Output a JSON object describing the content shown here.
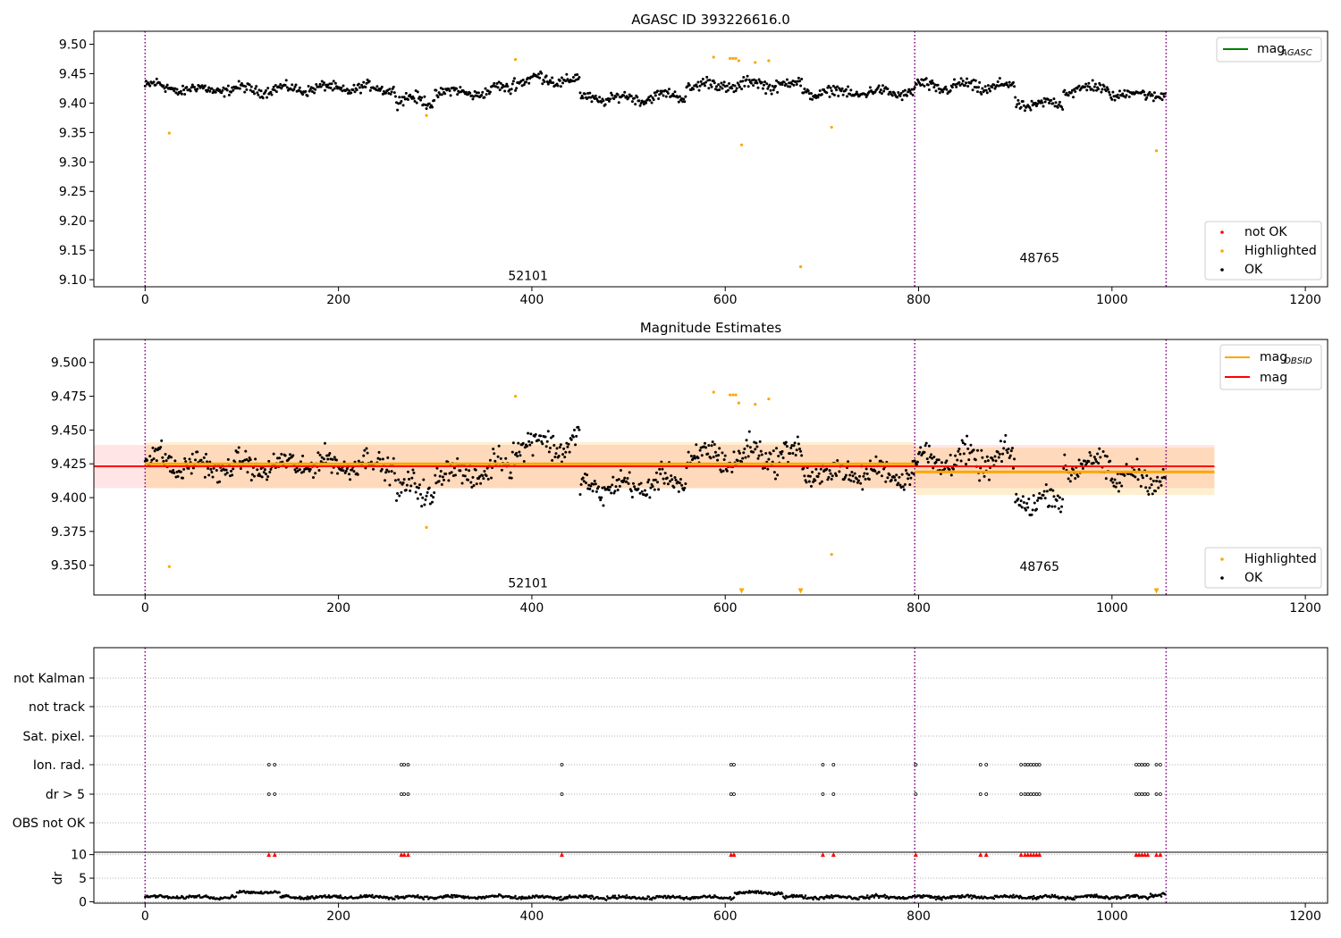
{
  "chart_data": [
    {
      "type": "scatter",
      "title": "AGASC ID 393226616.0",
      "xlabel": "",
      "ylabel": "",
      "xlim": [
        -53,
        1223
      ],
      "ylim": [
        9.088,
        9.522
      ],
      "x_ticks": [
        0,
        200,
        400,
        600,
        800,
        1000,
        1200
      ],
      "y_ticks": [
        9.1,
        9.15,
        9.2,
        9.25,
        9.3,
        9.35,
        9.4,
        9.45,
        9.5
      ],
      "y_tick_labels": [
        "9.10",
        "9.15",
        "9.20",
        "9.25",
        "9.30",
        "9.35",
        "9.40",
        "9.45",
        "9.50"
      ],
      "obsid_boundaries": [
        0,
        796,
        1056
      ],
      "obsid_labels": [
        {
          "x": 396,
          "y": 9.107,
          "text": "52101"
        },
        {
          "x": 925,
          "y": 9.137,
          "text": "48765"
        }
      ],
      "legend_upper": [
        {
          "label": "mag",
          "sub": "AGASC",
          "color": "#008000",
          "kind": "line"
        }
      ],
      "legend_lower": [
        {
          "label": "not OK",
          "color": "#ff0000",
          "kind": "dot"
        },
        {
          "label": "Highlighted",
          "color": "#ffa500",
          "kind": "dot"
        },
        {
          "label": "OK",
          "color": "#000000",
          "kind": "dot"
        }
      ],
      "series": [
        {
          "name": "Highlighted",
          "color": "#ffa500",
          "x": [
            25,
            291,
            383,
            588,
            605,
            608,
            611,
            614,
            617,
            631,
            645,
            678,
            710,
            1046
          ],
          "y": [
            9.349,
            9.379,
            9.474,
            9.478,
            9.476,
            9.476,
            9.476,
            9.472,
            9.329,
            9.469,
            9.472,
            9.122,
            9.359,
            9.319
          ]
        },
        {
          "name": "OK",
          "color": "#000000",
          "generated": true,
          "segments": [
            [
              0,
              30,
              9.428,
              0.012
            ],
            [
              30,
              150,
              9.423,
              0.01
            ],
            [
              150,
              260,
              9.425,
              0.01
            ],
            [
              260,
              300,
              9.405,
              0.012
            ],
            [
              300,
              360,
              9.418,
              0.01
            ],
            [
              360,
              380,
              9.425,
              0.01
            ],
            [
              380,
              450,
              9.44,
              0.012
            ],
            [
              450,
              520,
              9.408,
              0.01
            ],
            [
              520,
              560,
              9.412,
              0.01
            ],
            [
              560,
              620,
              9.43,
              0.012
            ],
            [
              620,
              680,
              9.432,
              0.012
            ],
            [
              680,
              796,
              9.418,
              0.01
            ],
            [
              796,
              900,
              9.428,
              0.012
            ],
            [
              900,
              950,
              9.398,
              0.01
            ],
            [
              950,
              1000,
              9.424,
              0.012
            ],
            [
              1000,
              1056,
              9.415,
              0.01
            ]
          ]
        }
      ]
    },
    {
      "type": "scatter",
      "title": "Magnitude Estimates",
      "xlabel": "",
      "ylabel": "",
      "xlim": [
        -53,
        1223
      ],
      "ylim": [
        9.328,
        9.517
      ],
      "x_ticks": [
        0,
        200,
        400,
        600,
        800,
        1000,
        1200
      ],
      "y_ticks": [
        9.35,
        9.375,
        9.4,
        9.425,
        9.45,
        9.475,
        9.5
      ],
      "y_tick_labels": [
        "9.350",
        "9.375",
        "9.400",
        "9.425",
        "9.450",
        "9.475",
        "9.500"
      ],
      "obsid_boundaries": [
        0,
        796,
        1056
      ],
      "obsid_labels": [
        {
          "x": 396,
          "y": 9.337,
          "text": "52101"
        },
        {
          "x": 925,
          "y": 9.349,
          "text": "48765"
        }
      ],
      "legend_upper": [
        {
          "label": "mag",
          "sub": "OBSID",
          "color": "#ffa500",
          "kind": "line"
        },
        {
          "label": "mag",
          "sub": "",
          "color": "#ff0000",
          "kind": "line"
        }
      ],
      "legend_lower": [
        {
          "label": "Highlighted",
          "color": "#ffa500",
          "kind": "dot"
        },
        {
          "label": "OK",
          "color": "#000000",
          "kind": "dot"
        }
      ],
      "mag": {
        "value": 9.4232,
        "band": [
          9.407,
          9.439
        ],
        "x_range": [
          -53,
          1106
        ],
        "color": "#ff0000"
      },
      "mag_obsid": [
        {
          "x0": 0,
          "x1": 796,
          "value": 9.425,
          "band": [
            9.407,
            9.441
          ]
        },
        {
          "x0": 796,
          "x1": 1106,
          "value": 9.419,
          "band": [
            9.402,
            9.437
          ]
        }
      ],
      "series": [
        {
          "name": "Highlighted",
          "color": "#ffa500",
          "x": [
            25,
            291,
            383,
            588,
            605,
            608,
            611,
            614,
            631,
            645,
            710
          ],
          "y": [
            9.349,
            9.378,
            9.475,
            9.478,
            9.476,
            9.476,
            9.476,
            9.47,
            9.469,
            9.473,
            9.358
          ]
        },
        {
          "name": "Highlighted (off scale)",
          "color": "#ffa500",
          "marker": "triangle-down",
          "x": [
            617,
            678,
            1046
          ],
          "y": [
            9.331,
            9.331,
            9.331
          ]
        },
        {
          "name": "OK",
          "color": "#000000",
          "generated": true,
          "segments": [
            [
              0,
              30,
              9.428,
              0.012
            ],
            [
              30,
              150,
              9.423,
              0.01
            ],
            [
              150,
              260,
              9.425,
              0.01
            ],
            [
              260,
              300,
              9.405,
              0.012
            ],
            [
              300,
              360,
              9.418,
              0.01
            ],
            [
              360,
              380,
              9.425,
              0.01
            ],
            [
              380,
              450,
              9.44,
              0.012
            ],
            [
              450,
              520,
              9.408,
              0.01
            ],
            [
              520,
              560,
              9.412,
              0.01
            ],
            [
              560,
              620,
              9.43,
              0.012
            ],
            [
              620,
              680,
              9.432,
              0.012
            ],
            [
              680,
              796,
              9.418,
              0.01
            ],
            [
              796,
              900,
              9.428,
              0.012
            ],
            [
              900,
              950,
              9.398,
              0.01
            ],
            [
              950,
              1000,
              9.424,
              0.012
            ],
            [
              1000,
              1056,
              9.415,
              0.01
            ]
          ]
        }
      ]
    },
    {
      "type": "scatter",
      "title": "",
      "xlabel": "",
      "xlim": [
        -53,
        1223
      ],
      "x_ticks": [
        0,
        200,
        400,
        600,
        800,
        1000,
        1200
      ],
      "obsid_boundaries": [
        0,
        796,
        1056
      ],
      "categories": [
        "not Kalman",
        "not track",
        "Sat. pixel.",
        "Ion. rad.",
        "dr > 5",
        "OBS not OK"
      ],
      "flags": {
        "Ion. rad.": [
          128,
          134,
          265,
          268,
          272,
          431,
          606,
          609,
          701,
          712,
          797,
          864,
          870,
          906,
          910,
          913,
          916,
          919,
          922,
          925,
          1025,
          1028,
          1031,
          1034,
          1037,
          1046,
          1050
        ],
        "dr > 5": [
          128,
          134,
          265,
          268,
          272,
          431,
          606,
          609,
          701,
          712,
          797,
          864,
          870,
          906,
          910,
          913,
          916,
          919,
          922,
          925,
          1025,
          1028,
          1031,
          1034,
          1037,
          1046,
          1050
        ]
      },
      "dr": {
        "ylabel": "dr",
        "ylim": [
          -0.3,
          10.5
        ],
        "y_ticks": [
          0,
          5,
          10
        ],
        "y_tick_labels": [
          "0",
          "5",
          "10"
        ],
        "clipped_value": 10,
        "clipped_x": [
          128,
          134,
          265,
          268,
          272,
          431,
          606,
          609,
          701,
          712,
          797,
          864,
          870,
          906,
          910,
          913,
          916,
          919,
          922,
          925,
          1025,
          1028,
          1031,
          1034,
          1037,
          1046,
          1050
        ],
        "segments": [
          [
            0,
            95,
            1.0,
            0.35
          ],
          [
            95,
            140,
            2.0,
            0.25
          ],
          [
            140,
            390,
            1.0,
            0.4
          ],
          [
            390,
            610,
            0.9,
            0.4
          ],
          [
            610,
            660,
            1.9,
            0.3
          ],
          [
            660,
            796,
            1.0,
            0.4
          ],
          [
            796,
            1040,
            1.0,
            0.4
          ],
          [
            1040,
            1056,
            1.6,
            0.5
          ]
        ]
      }
    }
  ]
}
